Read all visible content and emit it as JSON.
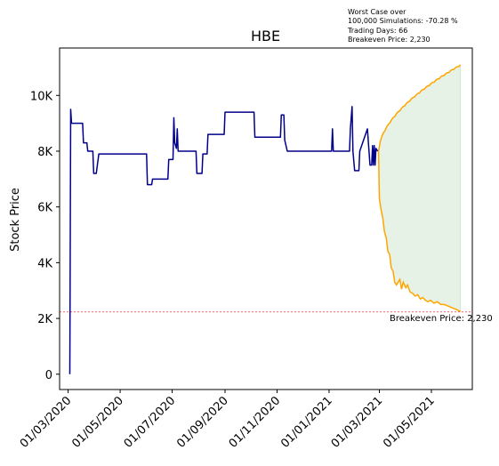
{
  "chart_data": {
    "type": "line",
    "title": "HBE",
    "ylabel": "Stock Price",
    "xlabel": "",
    "x_range": [
      "2020-02-20",
      "2021-06-18"
    ],
    "ylim": [
      -550,
      11700
    ],
    "y_ticks": [
      {
        "value": 0,
        "label": "0"
      },
      {
        "value": 2000,
        "label": "2K"
      },
      {
        "value": 4000,
        "label": "4K"
      },
      {
        "value": 6000,
        "label": "6K"
      },
      {
        "value": 8000,
        "label": "8K"
      },
      {
        "value": 10000,
        "label": "10K"
      }
    ],
    "x_ticks": [
      {
        "date": "2020-03-01",
        "label": "01/03/2020"
      },
      {
        "date": "2020-05-01",
        "label": "01/05/2020"
      },
      {
        "date": "2020-07-01",
        "label": "01/07/2020"
      },
      {
        "date": "2020-09-01",
        "label": "01/09/2020"
      },
      {
        "date": "2020-11-01",
        "label": "01/11/2020"
      },
      {
        "date": "2021-01-01",
        "label": "01/01/2021"
      },
      {
        "date": "2021-03-01",
        "label": "01/03/2021"
      },
      {
        "date": "2021-05-01",
        "label": "01/05/2021"
      }
    ],
    "historical": {
      "color": "#00008b",
      "points": [
        [
          "2020-03-03",
          0
        ],
        [
          "2020-03-04",
          9500
        ],
        [
          "2020-03-05",
          9000
        ],
        [
          "2020-03-18",
          9000
        ],
        [
          "2020-03-19",
          8300
        ],
        [
          "2020-03-23",
          8300
        ],
        [
          "2020-03-24",
          8000
        ],
        [
          "2020-03-30",
          8000
        ],
        [
          "2020-03-31",
          7200
        ],
        [
          "2020-04-03",
          7200
        ],
        [
          "2020-04-06",
          7900
        ],
        [
          "2020-06-01",
          7900
        ],
        [
          "2020-06-02",
          6800
        ],
        [
          "2020-06-07",
          6800
        ],
        [
          "2020-06-08",
          7000
        ],
        [
          "2020-06-26",
          7000
        ],
        [
          "2020-06-27",
          7700
        ],
        [
          "2020-07-02",
          7700
        ],
        [
          "2020-07-03",
          9200
        ],
        [
          "2020-07-04",
          8300
        ],
        [
          "2020-07-06",
          8100
        ],
        [
          "2020-07-07",
          8800
        ],
        [
          "2020-07-08",
          8000
        ],
        [
          "2020-07-29",
          8000
        ],
        [
          "2020-07-30",
          7200
        ],
        [
          "2020-08-05",
          7200
        ],
        [
          "2020-08-06",
          7900
        ],
        [
          "2020-08-11",
          7900
        ],
        [
          "2020-08-12",
          8600
        ],
        [
          "2020-08-31",
          8600
        ],
        [
          "2020-09-01",
          9400
        ],
        [
          "2020-10-05",
          9400
        ],
        [
          "2020-10-06",
          8500
        ],
        [
          "2020-11-05",
          8500
        ],
        [
          "2020-11-06",
          9300
        ],
        [
          "2020-11-09",
          9300
        ],
        [
          "2020-11-10",
          8400
        ],
        [
          "2020-11-13",
          8000
        ],
        [
          "2020-12-31",
          8000
        ],
        [
          "2021-01-04",
          8000
        ],
        [
          "2021-01-05",
          8800
        ],
        [
          "2021-01-06",
          8000
        ],
        [
          "2021-01-25",
          8000
        ],
        [
          "2021-01-26",
          8800
        ],
        [
          "2021-01-28",
          9600
        ],
        [
          "2021-01-29",
          8000
        ],
        [
          "2021-01-31",
          7300
        ],
        [
          "2021-02-05",
          7300
        ],
        [
          "2021-02-06",
          8000
        ],
        [
          "2021-02-15",
          8800
        ],
        [
          "2021-02-18",
          7500
        ],
        [
          "2021-02-20",
          7500
        ],
        [
          "2021-02-21",
          8200
        ],
        [
          "2021-02-22",
          7500
        ],
        [
          "2021-02-23",
          8200
        ],
        [
          "2021-02-24",
          7500
        ],
        [
          "2021-02-25",
          8100
        ],
        [
          "2021-02-27",
          8000
        ]
      ]
    },
    "simulation": {
      "color": "#ffa500",
      "fill_color": "#e5f2e5",
      "start": [
        "2021-02-28",
        8000
      ],
      "upper_end": [
        "2021-06-04",
        11100
      ],
      "lower": [
        [
          "2021-03-01",
          6300
        ],
        [
          "2021-03-03",
          5900
        ],
        [
          "2021-03-05",
          5600
        ],
        [
          "2021-03-07",
          5100
        ],
        [
          "2021-03-09",
          4900
        ],
        [
          "2021-03-11",
          4400
        ],
        [
          "2021-03-13",
          4300
        ],
        [
          "2021-03-15",
          3800
        ],
        [
          "2021-03-17",
          3700
        ],
        [
          "2021-03-19",
          3300
        ],
        [
          "2021-03-21",
          3200
        ],
        [
          "2021-03-23",
          3300
        ],
        [
          "2021-03-25",
          3400
        ],
        [
          "2021-03-27",
          3050
        ],
        [
          "2021-03-29",
          3300
        ],
        [
          "2021-04-01",
          3100
        ],
        [
          "2021-04-03",
          3200
        ],
        [
          "2021-04-06",
          2950
        ],
        [
          "2021-04-09",
          2900
        ],
        [
          "2021-04-12",
          2800
        ],
        [
          "2021-04-15",
          2850
        ],
        [
          "2021-04-18",
          2700
        ],
        [
          "2021-04-21",
          2750
        ],
        [
          "2021-04-24",
          2650
        ],
        [
          "2021-04-27",
          2600
        ],
        [
          "2021-04-30",
          2650
        ],
        [
          "2021-05-04",
          2550
        ],
        [
          "2021-05-08",
          2600
        ],
        [
          "2021-05-12",
          2500
        ],
        [
          "2021-05-16",
          2500
        ],
        [
          "2021-05-20",
          2450
        ],
        [
          "2021-05-24",
          2400
        ],
        [
          "2021-05-28",
          2350
        ],
        [
          "2021-06-01",
          2300
        ],
        [
          "2021-06-04",
          2250
        ]
      ]
    },
    "breakeven": {
      "value": 2230,
      "color": "#ff0000",
      "label": "Breakeven Price: 2,230"
    },
    "annotation": [
      "Worst Case over",
      "100,000 Simulations: -70.28 %",
      "Trading Days: 66",
      "Breakeven Price: 2,230"
    ]
  }
}
